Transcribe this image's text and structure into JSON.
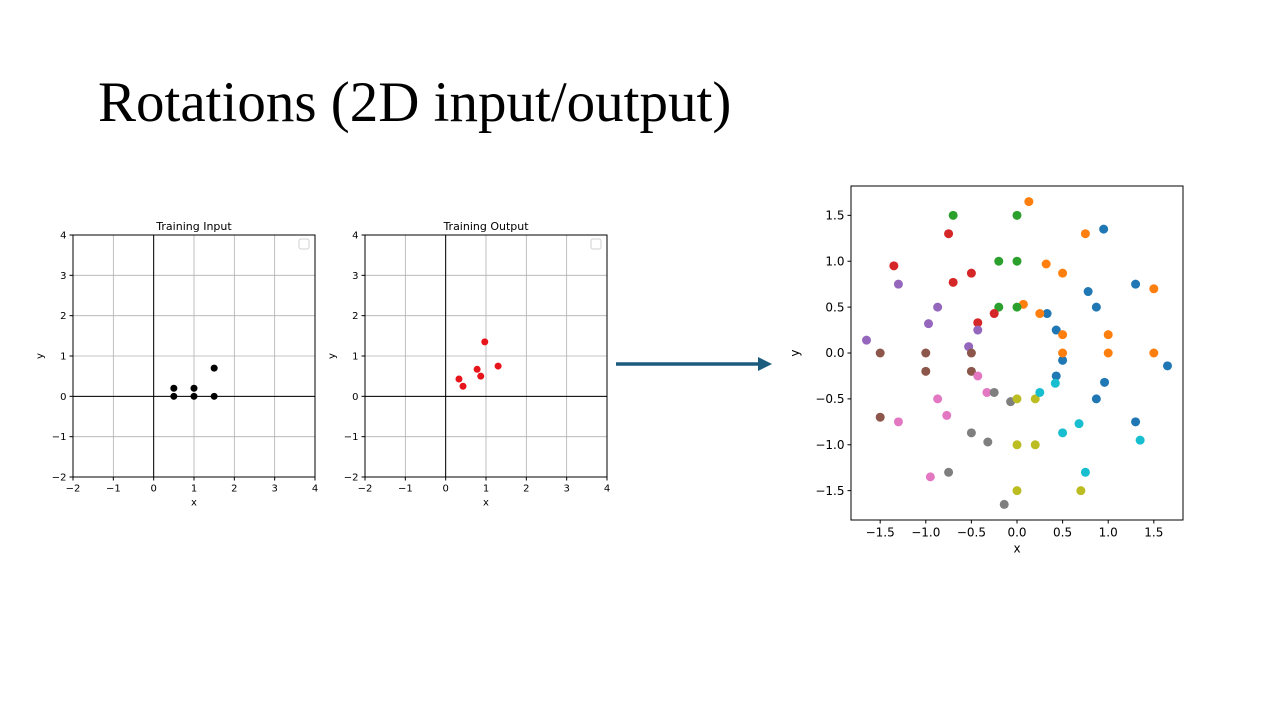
{
  "slide": {
    "title": "Rotations (2D input/output)"
  },
  "chart_data": [
    {
      "type": "scatter",
      "title": "Training Input",
      "xlabel": "x",
      "ylabel": "y",
      "xlim": [
        -2,
        4
      ],
      "ylim": [
        -2,
        4
      ],
      "xticks": [
        -2,
        -1,
        0,
        1,
        2,
        3,
        4
      ],
      "yticks": [
        -2,
        -1,
        0,
        1,
        2,
        3,
        4
      ],
      "tick_labels_x": [
        "−2",
        "−1",
        "0",
        "1",
        "2",
        "3",
        "4"
      ],
      "tick_labels_y": [
        "−2",
        "−1",
        "0",
        "1",
        "2",
        "3",
        "4"
      ],
      "grid": true,
      "axes_lines": true,
      "legend": "top-right (empty)",
      "color": "#000000",
      "series": [
        {
          "points": [
            [
              0.5,
              0.2
            ],
            [
              0.5,
              0.0
            ],
            [
              1.0,
              0.2
            ],
            [
              1.0,
              0.0
            ],
            [
              1.5,
              0.7
            ],
            [
              1.5,
              0.0
            ]
          ]
        }
      ]
    },
    {
      "type": "scatter",
      "title": "Training Output",
      "xlabel": "x",
      "ylabel": "y",
      "xlim": [
        -2,
        4
      ],
      "ylim": [
        -2,
        4
      ],
      "xticks": [
        -2,
        -1,
        0,
        1,
        2,
        3,
        4
      ],
      "yticks": [
        -2,
        -1,
        0,
        1,
        2,
        3,
        4
      ],
      "tick_labels_x": [
        "−2",
        "−1",
        "0",
        "1",
        "2",
        "3",
        "4"
      ],
      "tick_labels_y": [
        "−2",
        "−1",
        "0",
        "1",
        "2",
        "3",
        "4"
      ],
      "grid": true,
      "axes_lines": true,
      "legend": "top-right (empty)",
      "color": "#e8141c",
      "series": [
        {
          "points": [
            [
              0.33,
              0.43
            ],
            [
              0.43,
              0.25
            ],
            [
              0.78,
              0.67
            ],
            [
              0.87,
              0.5
            ],
            [
              0.97,
              1.35
            ],
            [
              1.3,
              0.75
            ]
          ]
        }
      ]
    },
    {
      "type": "scatter",
      "title": "",
      "xlabel": "x",
      "ylabel": "y",
      "xlim": [
        -1.82,
        1.82
      ],
      "ylim": [
        -1.82,
        1.82
      ],
      "xticks": [
        -1.5,
        -1.0,
        -0.5,
        0.0,
        0.5,
        1.0,
        1.5
      ],
      "yticks": [
        -1.5,
        -1.0,
        -0.5,
        0.0,
        0.5,
        1.0,
        1.5
      ],
      "tick_labels_x": [
        "−1.5",
        "−1.0",
        "−0.5",
        "0.0",
        "0.5",
        "1.0",
        "1.5"
      ],
      "tick_labels_y": [
        "−1.5",
        "−1.0",
        "−0.5",
        "0.0",
        "0.5",
        "1.0",
        "1.5"
      ],
      "grid": false,
      "axes_lines": false,
      "series": [
        {
          "color": "#1f77b4",
          "points": [
            [
              0.95,
              1.35
            ],
            [
              1.3,
              0.75
            ],
            [
              0.78,
              0.67
            ],
            [
              0.87,
              0.5
            ],
            [
              0.33,
              0.43
            ],
            [
              0.43,
              0.25
            ],
            [
              0.5,
              -0.08
            ],
            [
              1.65,
              -0.14
            ],
            [
              0.96,
              -0.32
            ],
            [
              0.43,
              -0.25
            ],
            [
              1.3,
              -0.75
            ],
            [
              0.87,
              -0.5
            ]
          ]
        },
        {
          "color": "#ff7f0e",
          "points": [
            [
              0.13,
              1.65
            ],
            [
              0.75,
              1.3
            ],
            [
              0.32,
              0.97
            ],
            [
              0.5,
              0.87
            ],
            [
              0.07,
              0.53
            ],
            [
              0.25,
              0.43
            ],
            [
              0.5,
              0.2
            ],
            [
              1.0,
              0.2
            ],
            [
              1.5,
              0.7
            ],
            [
              0.5,
              0.0
            ],
            [
              1.0,
              0.0
            ],
            [
              1.5,
              0.0
            ]
          ]
        },
        {
          "color": "#2ca02c",
          "points": [
            [
              -0.7,
              1.5
            ],
            [
              0.0,
              1.5
            ],
            [
              -0.2,
              1.0
            ],
            [
              0.0,
              1.0
            ],
            [
              -0.2,
              0.5
            ],
            [
              0.0,
              0.5
            ]
          ]
        },
        {
          "color": "#d62728",
          "points": [
            [
              -0.75,
              1.3
            ],
            [
              -1.35,
              0.95
            ],
            [
              -0.5,
              0.87
            ],
            [
              -0.7,
              0.77
            ],
            [
              -0.25,
              0.43
            ],
            [
              -0.43,
              0.33
            ]
          ]
        },
        {
          "color": "#9467bd",
          "points": [
            [
              -1.3,
              0.75
            ],
            [
              -0.87,
              0.5
            ],
            [
              -0.97,
              0.32
            ],
            [
              -0.43,
              0.25
            ],
            [
              -0.53,
              0.07
            ],
            [
              -1.65,
              0.14
            ]
          ]
        },
        {
          "color": "#8c564b",
          "points": [
            [
              -1.5,
              0.0
            ],
            [
              -1.0,
              0.0
            ],
            [
              -0.5,
              0.0
            ],
            [
              -1.0,
              -0.2
            ],
            [
              -0.5,
              -0.2
            ],
            [
              -1.5,
              -0.7
            ]
          ]
        },
        {
          "color": "#e377c2",
          "points": [
            [
              -0.43,
              -0.25
            ],
            [
              -0.87,
              -0.5
            ],
            [
              -0.33,
              -0.43
            ],
            [
              -1.3,
              -0.75
            ],
            [
              -0.77,
              -0.68
            ],
            [
              -0.95,
              -1.35
            ]
          ]
        },
        {
          "color": "#7f7f7f",
          "points": [
            [
              -0.25,
              -0.43
            ],
            [
              -0.07,
              -0.53
            ],
            [
              -0.5,
              -0.87
            ],
            [
              -0.32,
              -0.97
            ],
            [
              -0.75,
              -1.3
            ],
            [
              -0.14,
              -1.65
            ]
          ]
        },
        {
          "color": "#bcbd22",
          "points": [
            [
              0.0,
              -0.5
            ],
            [
              0.2,
              -0.5
            ],
            [
              0.0,
              -1.0
            ],
            [
              0.2,
              -1.0
            ],
            [
              0.0,
              -1.5
            ],
            [
              0.7,
              -1.5
            ]
          ]
        },
        {
          "color": "#17becf",
          "points": [
            [
              0.25,
              -0.43
            ],
            [
              0.42,
              -0.33
            ],
            [
              0.5,
              -0.87
            ],
            [
              0.68,
              -0.77
            ],
            [
              0.75,
              -1.3
            ],
            [
              1.35,
              -0.95
            ]
          ]
        }
      ]
    }
  ],
  "arrow": {
    "color": "#1b5c7e"
  }
}
